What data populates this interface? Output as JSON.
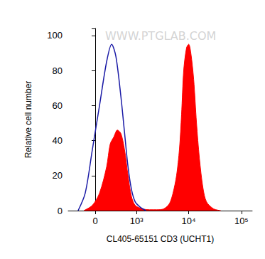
{
  "chart_data": {
    "type": "histogram",
    "x_label": "CL405-65151 CD3 (UCHT1)",
    "y_label": "Relative cell number",
    "annotations": [
      "WWW.PTGLAB.COM"
    ],
    "xlim": [
      -500,
      160000
    ],
    "xticks": [
      0,
      {
        "value": 1000,
        "label": "10³"
      },
      {
        "value": 10000,
        "label": "10⁴"
      },
      {
        "value": 100000,
        "label": "10⁵"
      }
    ],
    "ylim": [
      0,
      104
    ],
    "yticks": [
      0,
      20,
      40,
      60,
      80,
      100
    ],
    "grid": false,
    "series": [
      {
        "type": "area",
        "color": "#ff0000",
        "x": [
          -176,
          -43,
          64,
          176,
          238,
          306,
          382,
          466,
          561,
          670,
          792,
          942,
          1307,
          1795,
          2462,
          3363,
          4318,
          5049,
          5896,
          6684,
          7337,
          8055,
          9126,
          10030,
          11000,
          12450,
          14100,
          15980,
          18670,
          21800,
          29750,
          40600
        ],
        "values": [
          0,
          3,
          10,
          25,
          38,
          42,
          46,
          44,
          35,
          20,
          8,
          3,
          1,
          0.5,
          0.5,
          1,
          4,
          10,
          20,
          35,
          55,
          80,
          93,
          95,
          90,
          75,
          50,
          30,
          13,
          5,
          1,
          0
        ]
      },
      {
        "type": "line",
        "color": "#1a1aa6",
        "x": [
          -278,
          -153,
          -42,
          64,
          176,
          265,
          350,
          466,
          561,
          670,
          792,
          942,
          1183,
          1530
        ],
        "values": [
          0,
          10,
          35,
          60,
          85,
          95,
          88,
          65,
          45,
          25,
          12,
          5,
          2,
          0
        ]
      }
    ]
  }
}
